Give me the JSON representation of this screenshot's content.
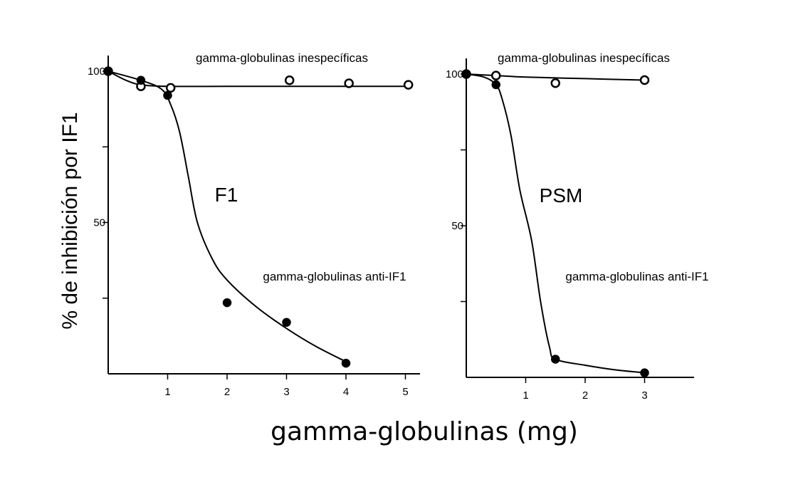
{
  "figure": {
    "ylabel": "% de inhibición por IF1",
    "xlabel": "gamma-globulinas (mg)"
  },
  "chart_data": [
    {
      "type": "scatter",
      "title": "F1",
      "xlabel": "gamma-globulinas (mg)",
      "ylabel": "% de inhibición por IF1",
      "xlim": [
        0,
        5.2
      ],
      "ylim": [
        0,
        100
      ],
      "x_ticks": [
        1,
        2,
        3,
        4,
        5
      ],
      "x_tick_labels": [
        "1",
        "2",
        "3",
        "4",
        "5"
      ],
      "y_ticks": [
        25,
        50,
        75,
        100
      ],
      "y_tick_labels": [
        "",
        "50",
        "",
        "100"
      ],
      "grid": false,
      "series": [
        {
          "name": "gamma-globulinas inespecíficas",
          "marker": "open",
          "x": [
            0,
            0.55,
            1.05,
            3.05,
            4.05,
            5.05
          ],
          "y": [
            100,
            95,
            94.5,
            97,
            96,
            95.5
          ],
          "curve_x": [
            0,
            0.3,
            0.55,
            1,
            2,
            3,
            4,
            5
          ],
          "curve_y": [
            100,
            97,
            95.5,
            95,
            95,
            95,
            95,
            95
          ],
          "label_pos": "top"
        },
        {
          "name": "gamma-globulinas anti-IF1",
          "marker": "filled",
          "x": [
            0,
            0.55,
            1,
            2,
            3,
            4
          ],
          "y": [
            100,
            97,
            92,
            23.5,
            17,
            3.5
          ],
          "curve_x": [
            0,
            0.55,
            0.9,
            1.05,
            1.2,
            1.35,
            1.5,
            1.75,
            2,
            2.5,
            3,
            3.5,
            4
          ],
          "curve_y": [
            100,
            97,
            94,
            89,
            80,
            65,
            50,
            38,
            31,
            22,
            15,
            9,
            4
          ],
          "label_pos": "middle"
        }
      ]
    },
    {
      "type": "scatter",
      "title": "PSM",
      "xlabel": "gamma-globulinas (mg)",
      "ylabel": "% de inhibición por IF1",
      "xlim": [
        0,
        3.8
      ],
      "ylim": [
        0,
        100
      ],
      "x_ticks": [
        1,
        2,
        3
      ],
      "x_tick_labels": [
        "1",
        "2",
        "3"
      ],
      "y_ticks": [
        25,
        50,
        75,
        100
      ],
      "y_tick_labels": [
        "",
        "50",
        "",
        "100"
      ],
      "grid": false,
      "series": [
        {
          "name": "gamma-globulinas inespecíficas",
          "marker": "open",
          "x": [
            0,
            0.5,
            1.5,
            3
          ],
          "y": [
            100,
            99.5,
            97,
            98
          ],
          "curve_x": [
            0,
            0.5,
            1,
            2,
            3
          ],
          "curve_y": [
            100,
            99.5,
            99,
            98.5,
            98
          ],
          "label_pos": "top"
        },
        {
          "name": "gamma-globulinas anti-IF1",
          "marker": "filled",
          "x": [
            0,
            0.5,
            1.5,
            3
          ],
          "y": [
            100,
            96.5,
            6,
            1.5
          ],
          "curve_x": [
            0,
            0.3,
            0.5,
            0.6,
            0.75,
            0.9,
            1.1,
            1.25,
            1.4,
            1.5,
            2,
            2.5,
            3
          ],
          "curve_y": [
            100,
            99,
            96.5,
            92,
            80,
            62,
            45,
            25,
            10,
            6,
            4,
            2.5,
            1.5
          ],
          "label_pos": "middle"
        }
      ]
    }
  ]
}
